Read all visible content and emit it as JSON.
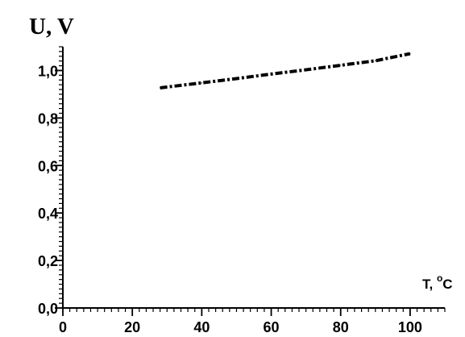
{
  "chart_data": {
    "type": "line",
    "ylabel": "U, V",
    "xlabel": "T, ",
    "xlabel_unit_degree": "o",
    "xlabel_unit_letter": "C",
    "xlim": [
      0,
      110
    ],
    "ylim": [
      0.0,
      1.1
    ],
    "x_ticks": [
      0,
      20,
      40,
      60,
      80,
      100
    ],
    "x_tick_labels": [
      "0",
      "20",
      "40",
      "60",
      "80",
      "100"
    ],
    "y_ticks": [
      0.0,
      0.2,
      0.4,
      0.6,
      0.8,
      1.0
    ],
    "y_tick_labels": [
      "0,0",
      "0,2",
      "0,4",
      "0,6",
      "0,8",
      "1,0"
    ],
    "grid": false,
    "series": [
      {
        "line_style": "dash-dot",
        "color": "#000000",
        "x": [
          28,
          40,
          50,
          60,
          70,
          80,
          90,
          100
        ],
        "y": [
          0.927,
          0.948,
          0.966,
          0.985,
          1.003,
          1.022,
          1.041,
          1.071
        ]
      }
    ]
  }
}
